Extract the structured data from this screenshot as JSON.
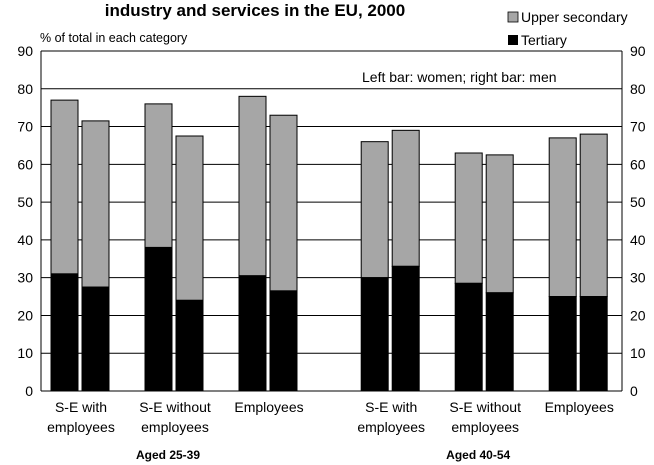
{
  "chart_data": {
    "type": "bar",
    "stacked": true,
    "title": "industry and services in the EU, 2000",
    "unit_label": "% of total in each category",
    "note": "Left bar: women; right bar: men",
    "ylim": [
      0,
      90
    ],
    "yticks": [
      0,
      10,
      20,
      30,
      40,
      50,
      60,
      70,
      80,
      90
    ],
    "grid": true,
    "legend_position": "top-right",
    "series": [
      {
        "name": "Upper secondary",
        "color": "#a6a6a6"
      },
      {
        "name": "Tertiary",
        "color": "#000000"
      }
    ],
    "groups": [
      {
        "label": "Aged 25-39",
        "categories": [
          {
            "label": [
              "S-E with",
              "employees"
            ],
            "bars": [
              {
                "tertiary": 31,
                "total": 77
              },
              {
                "tertiary": 27.5,
                "total": 71.5
              }
            ]
          },
          {
            "label": [
              "S-E without",
              "employees"
            ],
            "bars": [
              {
                "tertiary": 38,
                "total": 76
              },
              {
                "tertiary": 24,
                "total": 67.5
              }
            ]
          },
          {
            "label": [
              "Employees"
            ],
            "bars": [
              {
                "tertiary": 30.5,
                "total": 78
              },
              {
                "tertiary": 26.5,
                "total": 73
              }
            ]
          }
        ]
      },
      {
        "label": "Aged 40-54",
        "categories": [
          {
            "label": [
              "S-E with",
              "employees"
            ],
            "bars": [
              {
                "tertiary": 30,
                "total": 66
              },
              {
                "tertiary": 33,
                "total": 69
              }
            ]
          },
          {
            "label": [
              "S-E without",
              "employees"
            ],
            "bars": [
              {
                "tertiary": 28.5,
                "total": 63
              },
              {
                "tertiary": 26,
                "total": 62.5
              }
            ]
          },
          {
            "label": [
              "Employees"
            ],
            "bars": [
              {
                "tertiary": 25,
                "total": 67
              },
              {
                "tertiary": 25,
                "total": 68
              }
            ]
          }
        ]
      }
    ]
  }
}
